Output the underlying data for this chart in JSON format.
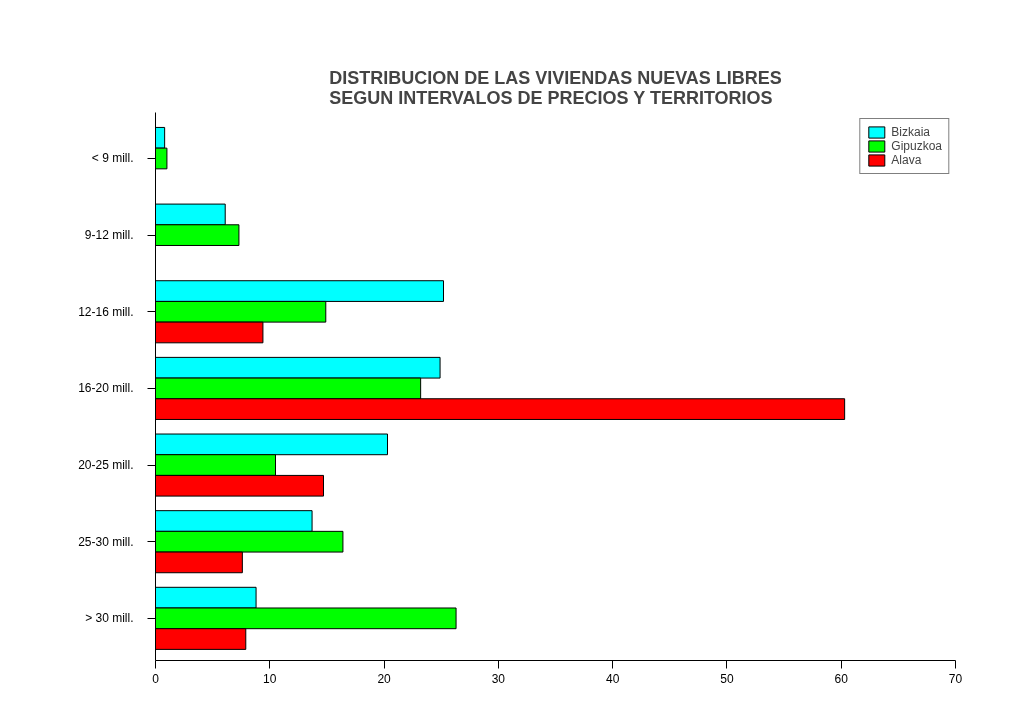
{
  "chart_data": {
    "type": "bar",
    "orientation": "horizontal",
    "title": "DISTRIBUCION DE LAS VIVIENDAS NUEVAS LIBRES\nSEGUN INTERVALOS DE PRECIOS Y TERRITORIOS",
    "categories": [
      "< 9 mill.",
      "9-12 mill.",
      "12-16 mill.",
      "16-20 mill.",
      "20-25 mill.",
      "25-30 mill.",
      "> 30 mill."
    ],
    "series": [
      {
        "name": "Bizkaia",
        "color": "#00ffff",
        "values": [
          0.8,
          6.1,
          25.2,
          24.9,
          20.3,
          13.7,
          8.8
        ]
      },
      {
        "name": "Gipuzkoa",
        "color": "#00ff00",
        "values": [
          1.0,
          7.3,
          14.9,
          23.2,
          10.5,
          16.4,
          26.3
        ]
      },
      {
        "name": "Alava",
        "color": "#ff0000",
        "values": [
          null,
          null,
          9.4,
          60.3,
          14.7,
          7.6,
          7.9
        ]
      }
    ],
    "xlim": [
      0,
      70
    ],
    "xticks": [
      0,
      10,
      20,
      30,
      40,
      50,
      60,
      70
    ],
    "legend": "top right"
  }
}
